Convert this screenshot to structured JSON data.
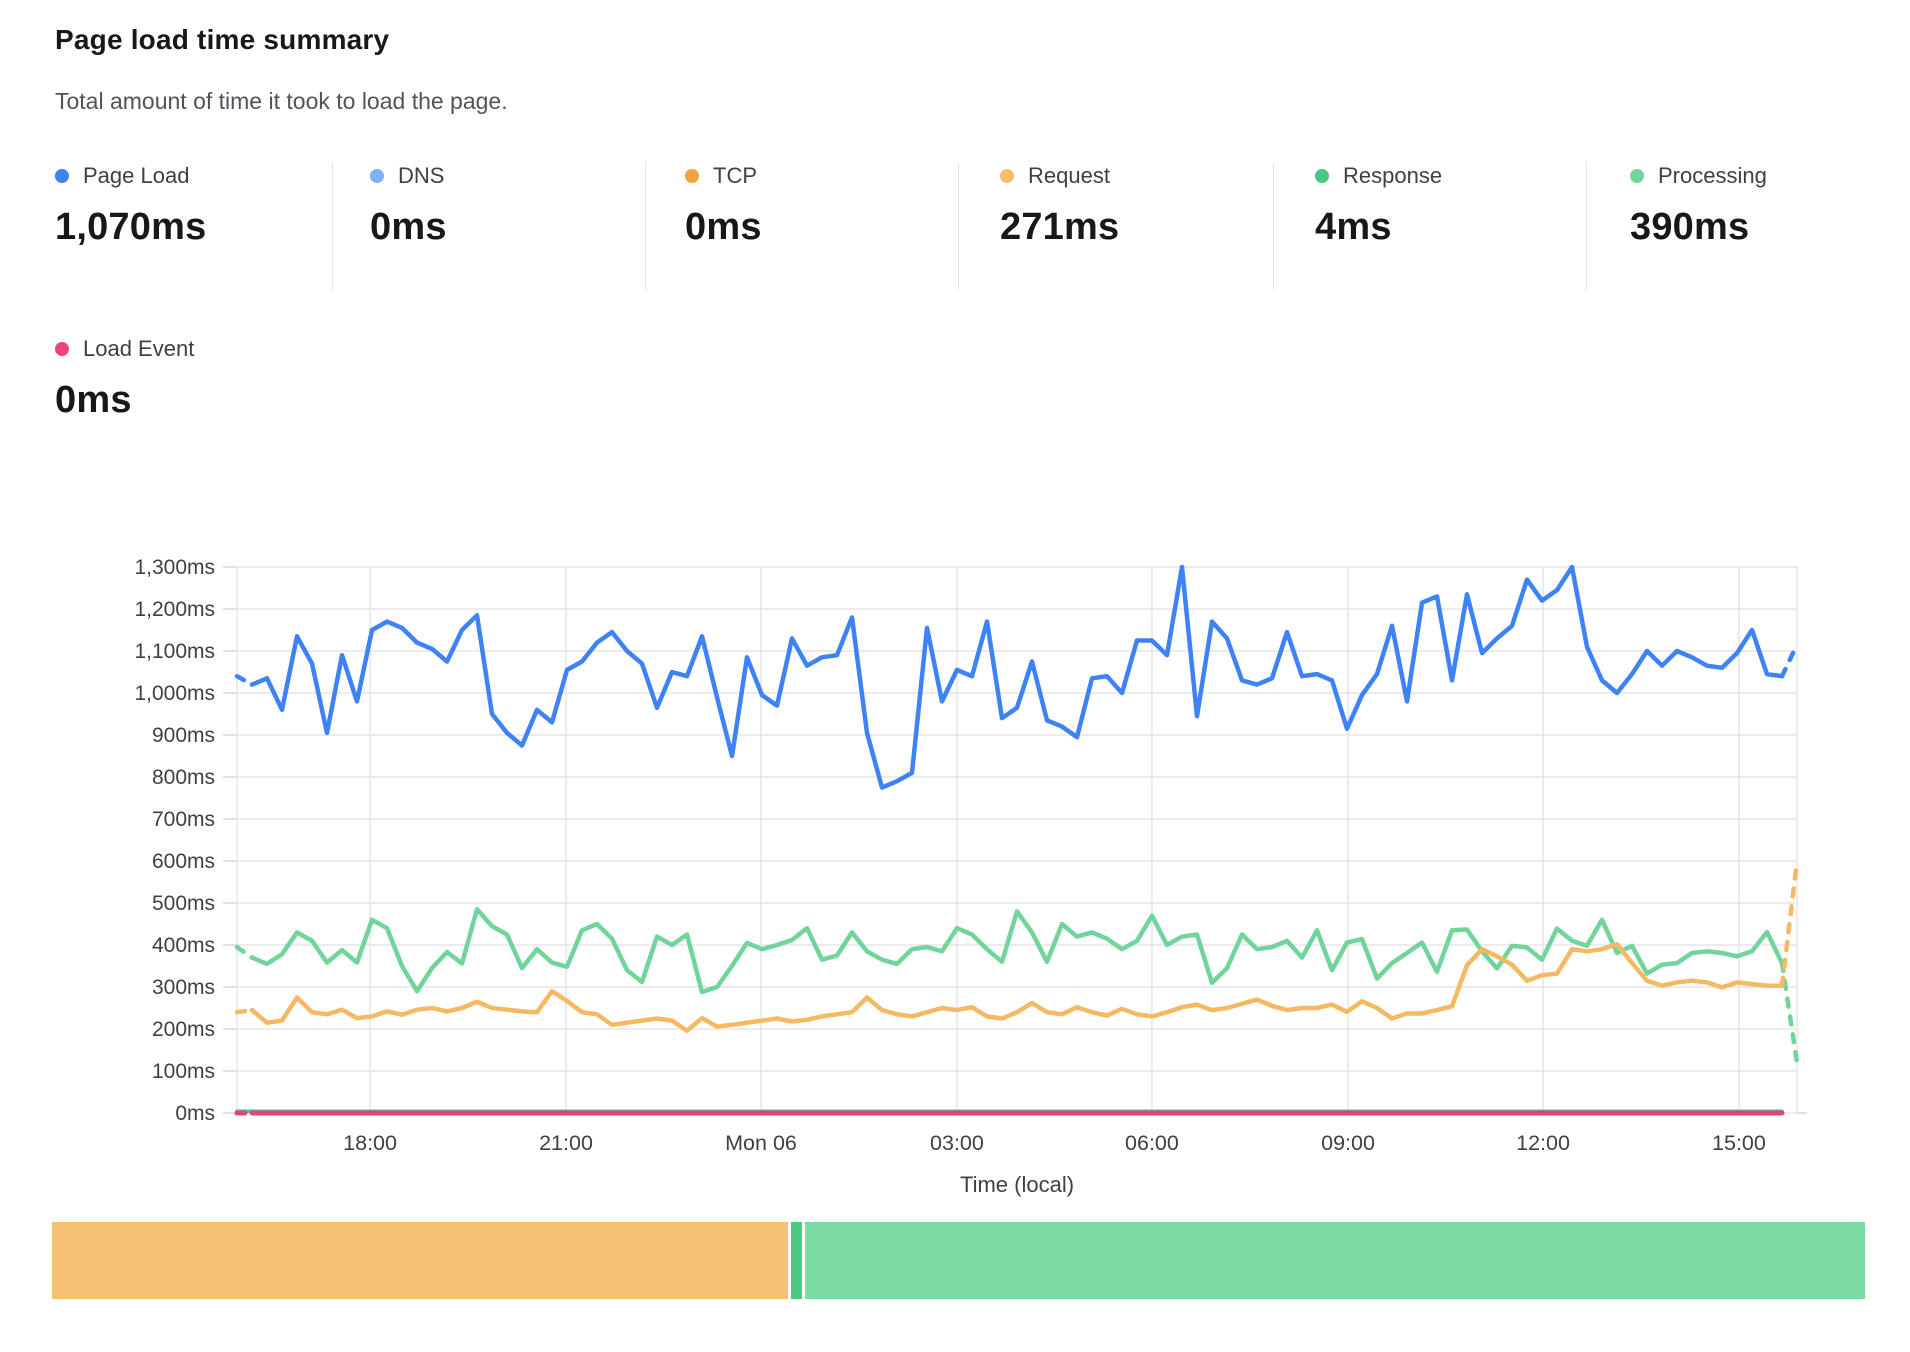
{
  "header": {
    "title": "Page load time summary",
    "subtitle": "Total amount of time it took to load the page."
  },
  "metrics": [
    {
      "id": "page-load",
      "label": "Page Load",
      "value": "1,070ms",
      "color": "#3E82F7"
    },
    {
      "id": "dns",
      "label": "DNS",
      "value": "0ms",
      "color": "#7DB2F9"
    },
    {
      "id": "tcp",
      "label": "TCP",
      "value": "0ms",
      "color": "#F0A43B"
    },
    {
      "id": "request",
      "label": "Request",
      "value": "271ms",
      "color": "#F6BC67"
    },
    {
      "id": "response",
      "label": "Response",
      "value": "4ms",
      "color": "#47C581"
    },
    {
      "id": "processing",
      "label": "Processing",
      "value": "390ms",
      "color": "#70D49B"
    },
    {
      "id": "load-event",
      "label": "Load Event",
      "value": "0ms",
      "color": "#F0437D"
    }
  ],
  "chart_data": {
    "type": "line",
    "unit": "ms",
    "ylim": [
      0,
      1300
    ],
    "y_tick_step": 100,
    "grid": true,
    "xlabel": "Time (local)",
    "n_slots": 105,
    "x_ticks": [
      {
        "label": "18:00",
        "f": 0.0853
      },
      {
        "label": "21:00",
        "f": 0.2109
      },
      {
        "label": "Mon 06",
        "f": 0.3359
      },
      {
        "label": "03:00",
        "f": 0.4615
      },
      {
        "label": "06:00",
        "f": 0.5865
      },
      {
        "label": "09:00",
        "f": 0.7122
      },
      {
        "label": "12:00",
        "f": 0.8372
      },
      {
        "label": "15:00",
        "f": 0.9628
      }
    ],
    "series": [
      {
        "name": "Page Load",
        "color": "#3E82F7",
        "stroke_width": 4.5,
        "dash_start": true,
        "dash_end": true,
        "values": [
          1040,
          1020,
          1035,
          960,
          1135,
          1070,
          905,
          1090,
          980,
          1150,
          1170,
          1155,
          1120,
          1105,
          1075,
          1150,
          1185,
          950,
          905,
          875,
          960,
          930,
          1055,
          1075,
          1120,
          1145,
          1100,
          1070,
          965,
          1050,
          1040,
          1135,
          990,
          850,
          1085,
          995,
          970,
          1130,
          1065,
          1085,
          1090,
          1180,
          905,
          775,
          790,
          810,
          1155,
          980,
          1055,
          1040,
          1170,
          940,
          965,
          1075,
          935,
          920,
          895,
          1035,
          1040,
          1000,
          1125,
          1125,
          1090,
          1300,
          945,
          1170,
          1130,
          1030,
          1020,
          1035,
          1145,
          1040,
          1045,
          1030,
          915,
          995,
          1045,
          1160,
          980,
          1215,
          1230,
          1030,
          1235,
          1095,
          1130,
          1160,
          1270,
          1220,
          1245,
          1300,
          1110,
          1030,
          1000,
          1045,
          1100,
          1065,
          1100,
          1085,
          1065,
          1060,
          1095,
          1150,
          1045,
          1040,
          1115
        ]
      },
      {
        "name": "Processing",
        "color": "#70D49B",
        "stroke_width": 4.5,
        "dash_start": true,
        "dash_end": true,
        "values": [
          395,
          370,
          355,
          378,
          430,
          410,
          358,
          388,
          358,
          460,
          440,
          350,
          290,
          345,
          383,
          356,
          485,
          445,
          425,
          345,
          390,
          358,
          348,
          435,
          450,
          415,
          340,
          312,
          420,
          400,
          425,
          288,
          300,
          350,
          405,
          390,
          400,
          412,
          440,
          365,
          375,
          430,
          385,
          365,
          355,
          390,
          395,
          385,
          440,
          425,
          390,
          360,
          480,
          430,
          360,
          450,
          420,
          430,
          415,
          390,
          410,
          470,
          400,
          420,
          425,
          310,
          345,
          425,
          390,
          395,
          410,
          370,
          435,
          340,
          406,
          414,
          320,
          357,
          381,
          406,
          336,
          435,
          437,
          385,
          344,
          398,
          394,
          365,
          439,
          410,
          398,
          460,
          381,
          398,
          332,
          353,
          357,
          381,
          385,
          381,
          373,
          385,
          431,
          357,
          120
        ]
      },
      {
        "name": "Request",
        "color": "#F5B963",
        "stroke_width": 4.5,
        "dash_start": true,
        "dash_end": true,
        "values": [
          240,
          245,
          215,
          220,
          275,
          240,
          235,
          246,
          226,
          230,
          242,
          234,
          246,
          250,
          242,
          250,
          265,
          250,
          246,
          242,
          240,
          290,
          267,
          240,
          235,
          210,
          215,
          220,
          225,
          220,
          196,
          226,
          206,
          210,
          215,
          220,
          225,
          218,
          222,
          230,
          235,
          240,
          275,
          245,
          235,
          230,
          240,
          250,
          245,
          252,
          230,
          225,
          240,
          262,
          240,
          235,
          252,
          240,
          232,
          248,
          235,
          230,
          240,
          252,
          258,
          245,
          250,
          260,
          270,
          255,
          245,
          250,
          250,
          258,
          241,
          266,
          250,
          225,
          237,
          237,
          245,
          254,
          352,
          390,
          373,
          353,
          315,
          328,
          332,
          390,
          385,
          390,
          402,
          357,
          315,
          303,
          311,
          315,
          311,
          299,
          311,
          307,
          303,
          303,
          600
        ]
      },
      {
        "name": "Response",
        "color": "#4BC783",
        "stroke_width": 3.5,
        "dash_start": false,
        "dash_end": false,
        "constant": 4,
        "count": 104
      },
      {
        "name": "Load Event",
        "color": "#E8417C",
        "stroke_width": 5,
        "dash_start": true,
        "dash_end": false,
        "constant": 0,
        "count": 104
      }
    ]
  },
  "phase_bar": {
    "segments": [
      {
        "name": "request",
        "color": "#F7C173",
        "value": 271
      },
      {
        "name": "response",
        "color": "#4FC981",
        "value": 4
      },
      {
        "name": "processing",
        "color": "#7CDBA2",
        "value": 390
      }
    ]
  },
  "style": {
    "grid_color": "#e5e5ea",
    "tick_color": "#d7d7db",
    "axis_text_color": "#3f3f46"
  }
}
